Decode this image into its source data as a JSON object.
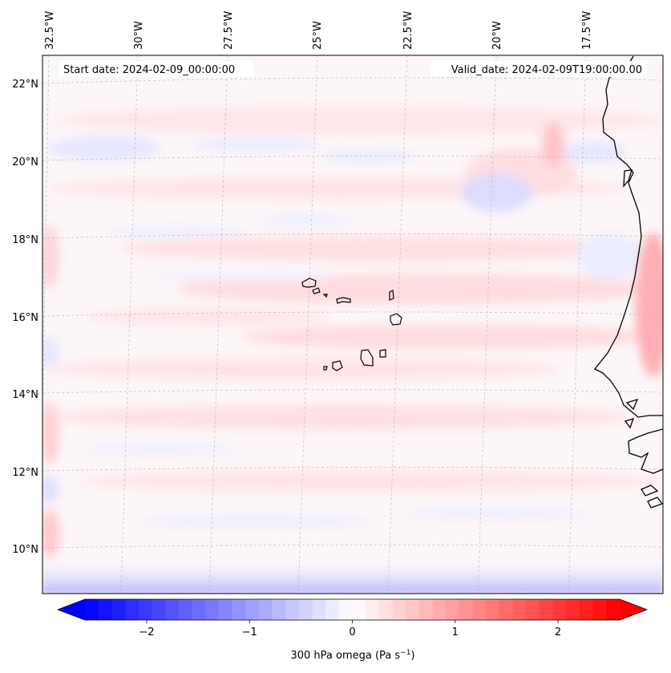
{
  "map": {
    "start_date": "Start date: 2024-02-09_00:00:00",
    "valid_date": "Valid_date: 2024-02-09T19:00:00.00",
    "lon_labels": [
      "32.5°W",
      "30°W",
      "27.5°W",
      "25°W",
      "22.5°W",
      "20°W",
      "17.5°W"
    ],
    "lat_labels": [
      "22°N",
      "20°N",
      "18°N",
      "16°N",
      "14°N",
      "12°N",
      "10°N"
    ],
    "coast_color": "#000000",
    "gridline_color": "#bbbbbb"
  },
  "colorbar": {
    "label_prefix": "300 hPa omega (Pa s",
    "label_exp": "−1",
    "label_suffix": ")",
    "tick_labels": [
      "−2",
      "−1",
      "0",
      "1",
      "2"
    ],
    "tick_values": [
      -2,
      -1,
      0,
      1,
      2
    ],
    "range": [
      -2.6,
      2.6
    ],
    "colormap": "bwr",
    "low_color": "#0000ff",
    "mid_color": "#ffffff",
    "high_color": "#ff0000"
  }
}
